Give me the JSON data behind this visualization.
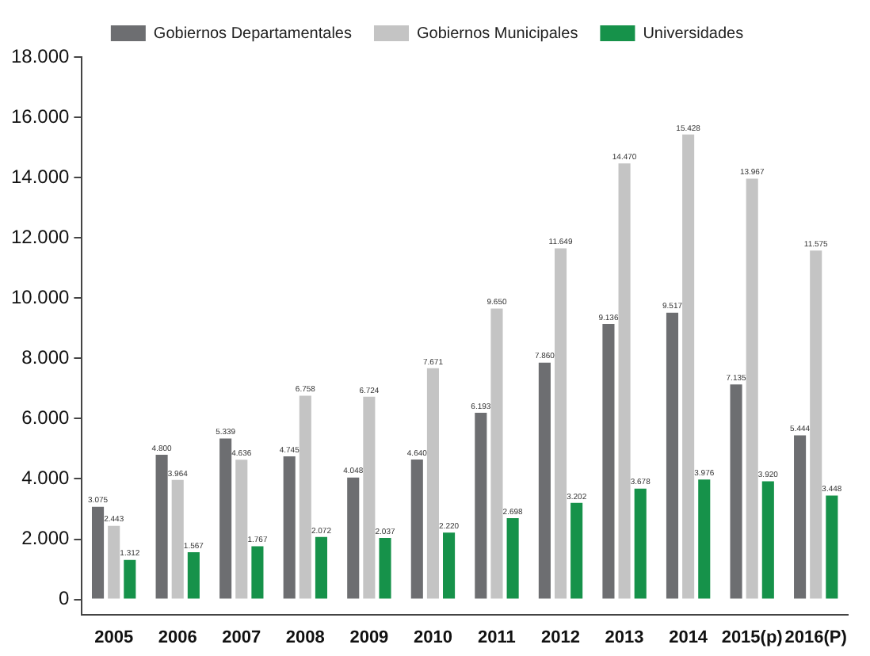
{
  "chart_data": {
    "type": "bar",
    "categories": [
      "2005",
      "2006",
      "2007",
      "2008",
      "2009",
      "2010",
      "2011",
      "2012",
      "2013",
      "2014",
      "2015(p)",
      "2016(P)"
    ],
    "series": [
      {
        "name": "Gobiernos Departamentales",
        "color": "#6d6e71",
        "values": [
          3075,
          4800,
          5339,
          4745,
          4048,
          4640,
          6193,
          7860,
          9136,
          9517,
          7135,
          5444
        ],
        "value_labels": [
          "3.075",
          "4.800",
          "5.339",
          "4.745",
          "4.048",
          "4.640",
          "6.193",
          "7.860",
          "9.136",
          "9.517",
          "7.135",
          "5.444"
        ]
      },
      {
        "name": "Gobiernos Municipales",
        "color": "#c4c4c4",
        "values": [
          2443,
          3964,
          4636,
          6758,
          6724,
          7671,
          9650,
          11649,
          14470,
          15428,
          13967,
          11575
        ],
        "value_labels": [
          "2.443",
          "3.964",
          "4.636",
          "6.758",
          "6.724",
          "7.671",
          "9.650",
          "11.649",
          "14.470",
          "15.428",
          "13.967",
          "11.575"
        ]
      },
      {
        "name": "Universidades",
        "color": "#16924a",
        "values": [
          1312,
          1567,
          1767,
          2072,
          2037,
          2220,
          2698,
          3202,
          3678,
          3976,
          3920,
          3448
        ],
        "value_labels": [
          "1.312",
          "1.567",
          "1.767",
          "2.072",
          "2.037",
          "2.220",
          "2.698",
          "3.202",
          "3.678",
          "3.976",
          "3.920",
          "3.448"
        ]
      }
    ],
    "ylim": [
      -500,
      18000
    ],
    "yticks": [
      {
        "value": 0,
        "label": "0"
      },
      {
        "value": 2000,
        "label": "2.000"
      },
      {
        "value": 4000,
        "label": "4.000"
      },
      {
        "value": 6000,
        "label": "6.000"
      },
      {
        "value": 8000,
        "label": "8.000"
      },
      {
        "value": 10000,
        "label": "10.000"
      },
      {
        "value": 12000,
        "label": "12.000"
      },
      {
        "value": 14000,
        "label": "14.000"
      },
      {
        "value": 16000,
        "label": "16.000"
      },
      {
        "value": 18000,
        "label": "18.000"
      }
    ],
    "grid": false,
    "legend": "top"
  }
}
